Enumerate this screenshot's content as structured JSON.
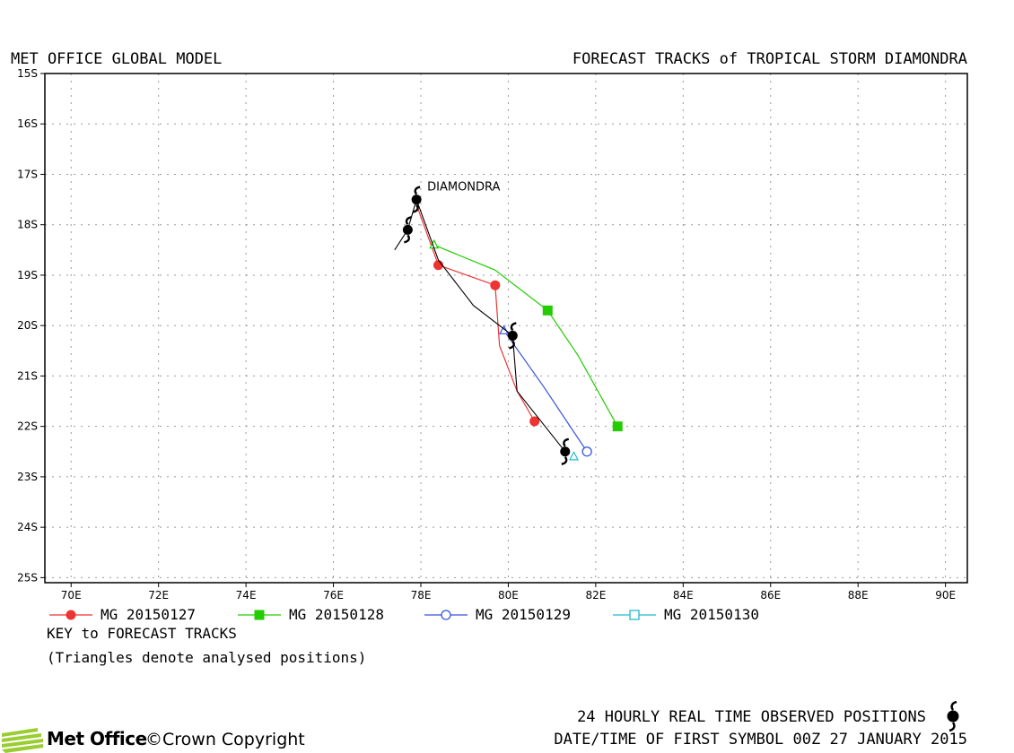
{
  "header": {
    "left": "MET OFFICE GLOBAL MODEL",
    "right": "FORECAST TRACKS of TROPICAL STORM DIAMONDRA"
  },
  "map": {
    "lon_range": [
      69.4,
      90.5
    ],
    "lat_range": [
      -25.1,
      -15.0
    ],
    "lon_ticks": [
      "70E",
      "72E",
      "74E",
      "76E",
      "78E",
      "80E",
      "82E",
      "84E",
      "86E",
      "88E",
      "90E"
    ],
    "lat_ticks": [
      "15S",
      "16S",
      "17S",
      "18S",
      "19S",
      "20S",
      "21S",
      "22S",
      "23S",
      "24S",
      "25S"
    ],
    "grid": true,
    "storm_label": "DIAMONDRA"
  },
  "chart_data": {
    "type": "line",
    "xlabel": "",
    "ylabel": "",
    "series": [
      {
        "name": "MG 20150127",
        "color": "#ee3333",
        "marker": "filled-circle",
        "points": [
          [
            77.9,
            -17.6
          ],
          [
            78.4,
            -18.8
          ],
          [
            79.7,
            -19.2
          ],
          [
            79.8,
            -20.4
          ],
          [
            80.2,
            -21.3
          ],
          [
            80.6,
            -21.9
          ]
        ],
        "marker_points": [
          [
            78.4,
            -18.8
          ],
          [
            79.7,
            -19.2
          ],
          [
            80.6,
            -21.9
          ]
        ]
      },
      {
        "name": "MG 20150128",
        "color": "#22cc00",
        "marker": "filled-square",
        "points": [
          [
            78.3,
            -18.4
          ],
          [
            79.7,
            -18.9
          ],
          [
            80.9,
            -19.7
          ],
          [
            81.6,
            -20.6
          ],
          [
            82.5,
            -22.0
          ]
        ],
        "marker_points": [
          [
            80.9,
            -19.7
          ],
          [
            82.5,
            -22.0
          ]
        ]
      },
      {
        "name": "MG 20150129",
        "color": "#3355dd",
        "marker": "open-circle",
        "points": [
          [
            79.9,
            -20.1
          ],
          [
            80.8,
            -21.2
          ],
          [
            81.8,
            -22.5
          ]
        ],
        "marker_points": [
          [
            81.8,
            -22.5
          ]
        ]
      },
      {
        "name": "MG 20150130",
        "color": "#22bbcc",
        "marker": "open-square",
        "points": [
          [
            81.5,
            -22.6
          ]
        ],
        "marker_points": []
      }
    ],
    "analysed_positions": [
      {
        "color": "#22cc00",
        "point": [
          78.3,
          -18.4
        ]
      },
      {
        "color": "#3355dd",
        "point": [
          79.9,
          -20.1
        ]
      },
      {
        "color": "#22bbcc",
        "point": [
          81.5,
          -22.6
        ]
      }
    ],
    "observed_track": [
      [
        77.4,
        -18.5
      ],
      [
        77.7,
        -18.1
      ],
      [
        77.9,
        -17.5
      ],
      [
        78.4,
        -18.7
      ],
      [
        79.2,
        -19.6
      ],
      [
        80.1,
        -20.2
      ],
      [
        80.2,
        -21.3
      ],
      [
        81.3,
        -22.5
      ]
    ],
    "observed_symbols": [
      [
        77.9,
        -17.5
      ],
      [
        77.7,
        -18.1
      ],
      [
        80.1,
        -20.2
      ],
      [
        81.3,
        -22.5
      ]
    ]
  },
  "legend": {
    "items": [
      {
        "label": "MG 20150127",
        "color": "#ee3333",
        "marker": "filled-circle"
      },
      {
        "label": "MG 20150128",
        "color": "#22cc00",
        "marker": "filled-square"
      },
      {
        "label": "MG 20150129",
        "color": "#3355dd",
        "marker": "open-circle"
      },
      {
        "label": "MG 20150130",
        "color": "#22bbcc",
        "marker": "open-square"
      }
    ],
    "key_title": "KEY to FORECAST TRACKS",
    "key_note": "(Triangles denote analysed positions)"
  },
  "footer": {
    "logo_text": "Met Office",
    "copyright": "©Crown Copyright",
    "observed_note": "24 HOURLY REAL TIME OBSERVED POSITIONS",
    "datetime_note": "DATE/TIME OF FIRST SYMBOL 00Z 27 JANUARY 2015"
  }
}
